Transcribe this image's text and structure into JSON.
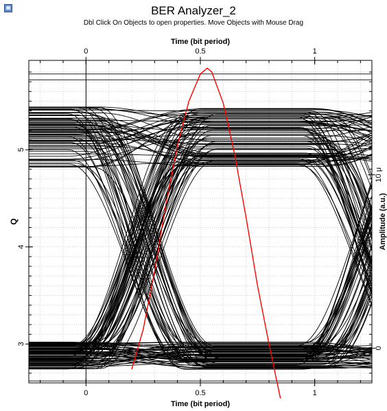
{
  "window": {
    "title": "BER Analyzer_2",
    "hint": "Dbl Click On Objects to open properties.  Move Objects with Mouse Drag",
    "icon": "analyzer-app-icon"
  },
  "chart_data": {
    "type": "line",
    "title": "BER Analyzer_2",
    "xlabel_top": "Time (bit period)",
    "xlabel_bottom": "Time (bit period)",
    "ylabel_left": "Q",
    "ylabel_right": "Amplitude (a.u.)",
    "xlim": [
      -0.25,
      1.25
    ],
    "ylim_left": [
      2.6,
      5.92
    ],
    "ylim_right": [
      -2e-06,
      1.66e-05
    ],
    "x_ticks": [
      0,
      0.5,
      1
    ],
    "x_tick_labels": [
      "0",
      "0.5",
      "1"
    ],
    "y_ticks_left": [
      3,
      4,
      5
    ],
    "y_tick_labels_left": [
      "3",
      "4",
      "5"
    ],
    "y_ticks_right": [
      0,
      1e-05
    ],
    "y_tick_labels_right": [
      "0",
      "10 μ"
    ],
    "grid": true,
    "q_curve": {
      "color": "#ff0000",
      "x": [
        0.2,
        0.25,
        0.3,
        0.35,
        0.4,
        0.45,
        0.5,
        0.53,
        0.55,
        0.6,
        0.65,
        0.7,
        0.75,
        0.8,
        0.85
      ],
      "y": [
        2.74,
        3.15,
        3.75,
        4.45,
        5.05,
        5.5,
        5.78,
        5.84,
        5.8,
        5.48,
        4.95,
        4.3,
        3.6,
        3.0,
        2.44
      ]
    },
    "eye_diagram": {
      "color": "#000000",
      "bit_x_range": [
        0,
        1
      ],
      "level_one_range": [
        4.82,
        5.45
      ],
      "level_zero_range": [
        2.74,
        3.02
      ],
      "crossing_level": 3.92,
      "outliers": [
        2.55,
        2.62,
        5.72,
        5.78
      ]
    }
  }
}
